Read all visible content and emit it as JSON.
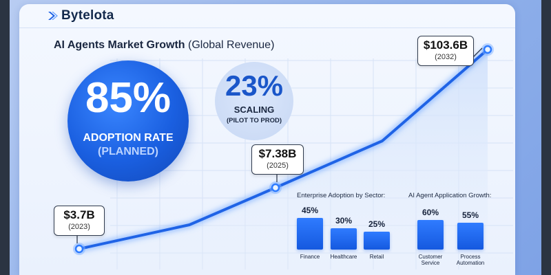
{
  "brand": {
    "name": "Bytelota",
    "icon": "brand-chevron-icon"
  },
  "title": {
    "bold": "AI Agents Market Growth",
    "normal": "(Global Revenue)"
  },
  "chart_data": [
    {
      "type": "line",
      "title": "AI Agents Market Growth (Global Revenue)",
      "x": [
        2023,
        2025,
        2032
      ],
      "values": [
        3.7,
        7.38,
        103.6
      ],
      "unit": "$B",
      "annotations": [
        {
          "value": "$3.7B",
          "year": "(2023)"
        },
        {
          "value": "$7.38B",
          "year": "(2025)"
        },
        {
          "value": "$103.6B",
          "year": "(2032)"
        }
      ],
      "grid": true
    },
    {
      "type": "bar",
      "title": "Enterprise Adoption by Sector:",
      "categories": [
        "Finance",
        "Healthcare",
        "Retail"
      ],
      "values": [
        45,
        30,
        25
      ],
      "labels": [
        "45%",
        "30%",
        "25%"
      ]
    },
    {
      "type": "bar",
      "title": "AI Agent Application Growth:",
      "categories": [
        "Customer Service",
        "Process Automation"
      ],
      "category_lines": [
        [
          "Customer",
          "Service"
        ],
        [
          "Process",
          "Automation"
        ]
      ],
      "values": [
        60,
        55
      ],
      "labels": [
        "60%",
        "55%"
      ]
    }
  ],
  "stats": {
    "adoption": {
      "value": "85%",
      "label": "ADOPTION RATE",
      "sublabel": "(PLANNED)"
    },
    "scaling": {
      "value": "23%",
      "label": "SCALING",
      "sublabel": "(PILOT TO PROD)"
    }
  },
  "colors": {
    "accent": "#1a5fe0",
    "line": "#1f63e6",
    "glow": "#3d8bff",
    "text": "#1a2740"
  }
}
